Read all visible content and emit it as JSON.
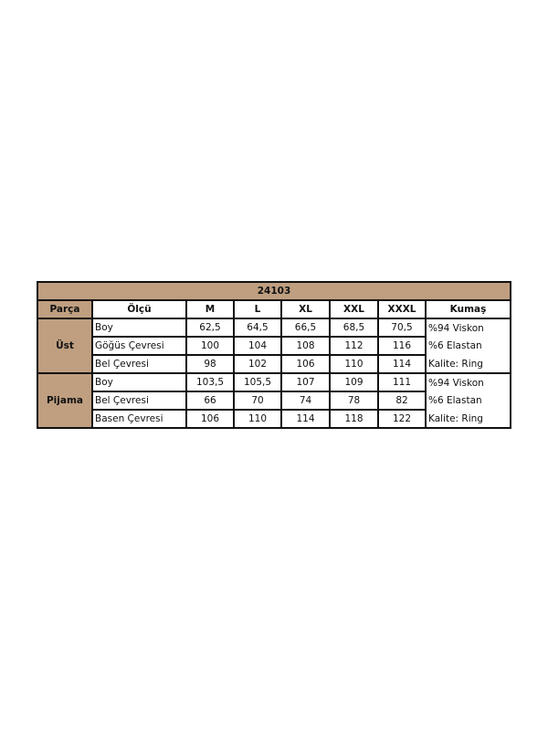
{
  "title": "24103",
  "headers": [
    "Parça",
    "Ölçü",
    "M",
    "L",
    "XL",
    "XXL",
    "XXXL",
    "Kumaş"
  ],
  "groups": [
    {
      "part": "Üst",
      "rows": [
        {
          "measure": "Boy",
          "values": [
            "62,5",
            "64,5",
            "66,5",
            "68,5",
            "70,5"
          ],
          "fabric": "%94 Viskon"
        },
        {
          "measure": "Göğüs Çevresi",
          "values": [
            "100",
            "104",
            "108",
            "112",
            "116"
          ],
          "fabric": "%6 Elastan"
        },
        {
          "measure": "Bel Çevresi",
          "values": [
            "98",
            "102",
            "106",
            "110",
            "114"
          ],
          "fabric": "Kalite: Ring"
        }
      ]
    },
    {
      "part": "Pijama",
      "rows": [
        {
          "measure": "Boy",
          "values": [
            "103,5",
            "105,5",
            "107",
            "109",
            "111"
          ],
          "fabric": "%94 Viskon"
        },
        {
          "measure": "Bel Çevresi",
          "values": [
            "66",
            "70",
            "74",
            "78",
            "82"
          ],
          "fabric": "%6 Elastan"
        },
        {
          "measure": "Basen Çevresi",
          "values": [
            "106",
            "110",
            "114",
            "118",
            "122"
          ],
          "fabric": "Kalite: Ring"
        }
      ]
    }
  ],
  "colors": {
    "header_bg": "#bf9f80",
    "border": "#111111"
  }
}
